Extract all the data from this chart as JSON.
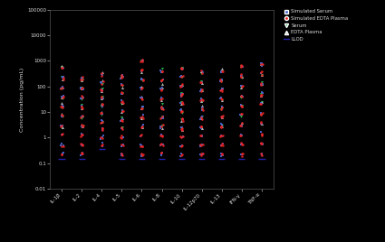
{
  "ylabel": "Concentration (pg/mL)",
  "simulated_serum_color": "#4466CC",
  "simulated_edta_color": "#EE2222",
  "serum_color": "#22BB55",
  "edta_color": "#CCCCCC",
  "llod_color": "#2222AA",
  "background_color": "#000000",
  "text_color": "#DDDDDD",
  "x_labels": [
    "IL-1β",
    "IL-2",
    "IL-4",
    "IL-5",
    "IL-6",
    "IL-8",
    "IL-10",
    "IL-12p70",
    "IL-13",
    "IFN-γ",
    "TNF-α"
  ],
  "col_tops": [
    500,
    200,
    300,
    250,
    1000,
    400,
    500,
    350,
    400,
    600,
    800
  ],
  "col_llod": [
    0.15,
    0.15,
    0.35,
    0.15,
    0.15,
    0.15,
    0.15,
    0.15,
    0.15,
    0.15,
    0.15
  ],
  "n_levels": [
    10,
    9,
    10,
    10,
    11,
    10,
    11,
    10,
    10,
    10,
    10
  ]
}
